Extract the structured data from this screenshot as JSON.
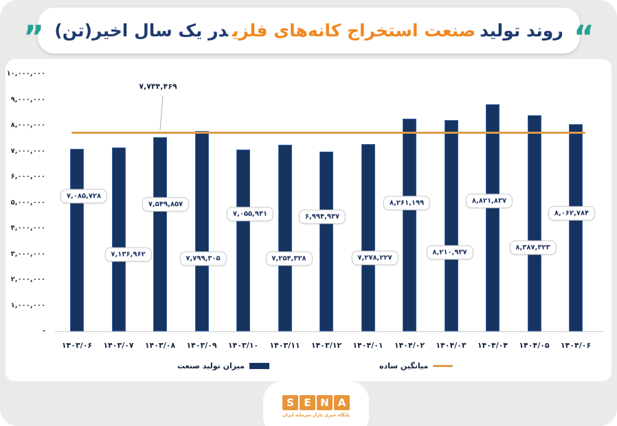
{
  "page": {
    "background": "#eaeae8"
  },
  "title": {
    "part1": "روند تولید",
    "part2": "صنعت استخراج کانه‌های فلزی",
    "part3": "در یک سال اخیر(تن)",
    "navy": "#1e3a6e",
    "orange": "#f0871f",
    "quote_color": "#27a094",
    "quote_right": "“",
    "quote_left": "”"
  },
  "chart_data": {
    "type": "bar",
    "title": "روند تولید صنعت استخراج کانه‌های فلزی در یک سال اخیر (تن)",
    "categories": [
      "۱۴۰۳/۰۶",
      "۱۴۰۳/۰۷",
      "۱۴۰۳/۰۸",
      "۱۴۰۳/۰۹",
      "۱۴۰۳/۱۰",
      "۱۴۰۳/۱۱",
      "۱۴۰۳/۱۲",
      "۱۴۰۴/۰۱",
      "۱۴۰۴/۰۲",
      "۱۴۰۴/۰۳",
      "۱۴۰۴/۰۴",
      "۱۴۰۴/۰۵",
      "۱۴۰۴/۰۶"
    ],
    "series": [
      {
        "name": "میزان تولید صنعت",
        "type": "bar",
        "color": "#153460",
        "border_color": "#3a66ad",
        "values": [
          7085728,
          7136962,
          7549857,
          7799305,
          7055931,
          7254328,
          6994937,
          7278227,
          8261199,
          8210937,
          8821837,
          8387323,
          8062784
        ],
        "value_labels": [
          "۷,۰۸۵,۷۲۸",
          "۷,۱۳۶,۹۶۲",
          "۷,۵۴۹,۸۵۷",
          "۷,۷۹۹,۳۰۵",
          "۷,۰۵۵,۹۳۱",
          "۷,۲۵۴,۳۲۸",
          "۶,۹۹۴,۹۳۷",
          "۷,۲۷۸,۲۲۷",
          "۸,۲۶۱,۱۹۹",
          "۸,۲۱۰,۹۳۷",
          "۸,۸۲۱,۸۳۷",
          "۸,۳۸۷,۳۲۳",
          "۸,۰۶۲,۷۸۴"
        ]
      },
      {
        "name": "میانگین ساده",
        "type": "line",
        "color": "#dd9a47",
        "value": 7734469,
        "value_label": "۷,۷۳۴,۴۶۹"
      }
    ],
    "ylim": [
      0,
      10000000
    ],
    "ytick_labels": [
      "۱۰,۰۰۰,۰۰۰",
      "۹,۰۰۰,۰۰۰",
      "۸,۰۰۰,۰۰۰",
      "۷,۰۰۰,۰۰۰",
      "۶,۰۰۰,۰۰۰",
      "۵,۰۰۰,۰۰۰",
      "۴,۰۰۰,۰۰۰",
      "۳,۰۰۰,۰۰۰",
      "۲,۰۰۰,۰۰۰",
      "۱,۰۰۰,۰۰۰",
      "-"
    ],
    "grid": false,
    "legend_position": "bottom"
  },
  "legend": {
    "bar_label": "میزان تولید صنعت",
    "line_label": "میانگین ساده"
  },
  "logo": {
    "letters": [
      "S",
      "E",
      "N",
      "A"
    ],
    "tile_color": "#e8953a",
    "tagline": "پایگاه خبری بازار سرمایه ایران",
    "tagline_color": "#e8953a"
  }
}
